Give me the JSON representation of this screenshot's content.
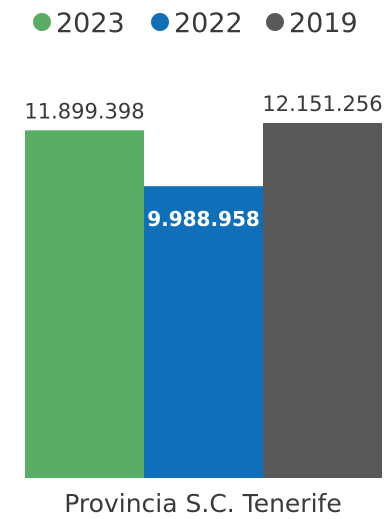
{
  "chart_data": {
    "type": "bar",
    "categories": [
      "Provincia S.C. Tenerife"
    ],
    "series": [
      {
        "name": "2023",
        "values": [
          11899398
        ],
        "label": "11.899.398",
        "color": "#5aad64"
      },
      {
        "name": "2022",
        "values": [
          9988958
        ],
        "label": "9.988.958",
        "color": "#0f6fb8"
      },
      {
        "name": "2019",
        "values": [
          12151256
        ],
        "label": "12.151.256",
        "color": "#595959"
      }
    ],
    "legend_position": "top",
    "grid": false,
    "ylim": [
      0,
      12151256
    ]
  }
}
